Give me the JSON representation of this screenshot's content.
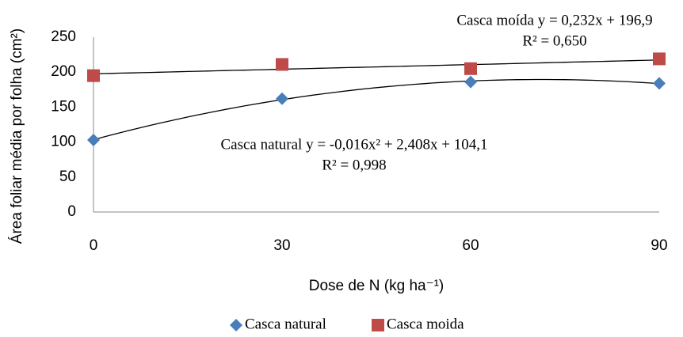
{
  "chart_data": {
    "type": "scatter",
    "y_label": "Área foliar média por folha (cm²)",
    "x_label": "Dose de N (kg ha⁻¹)",
    "x": [
      0,
      30,
      60,
      90
    ],
    "series": [
      {
        "name": "Casca natural",
        "color": "#4a7ebb",
        "marker": "diamond",
        "trendline_order": 2,
        "values": [
          103,
          162,
          186,
          184
        ]
      },
      {
        "name": "Casca moida",
        "color": "#be4b48",
        "marker": "square",
        "trendline_order": 1,
        "values": [
          195,
          211,
          205,
          219
        ]
      }
    ],
    "annotations": [
      "Casca moída y = 0,232x + 196,9",
      "R² = 0,650",
      "Casca natural y = -0,016x² + 2,408x + 104,1",
      "R² = 0,998"
    ],
    "xlim": [
      0,
      90
    ],
    "xticks": [
      0,
      30,
      60,
      90
    ],
    "ylim": [
      0,
      250
    ],
    "yticks": [
      0,
      50,
      100,
      150,
      200,
      250
    ],
    "grid": false,
    "legend": "bottom"
  }
}
